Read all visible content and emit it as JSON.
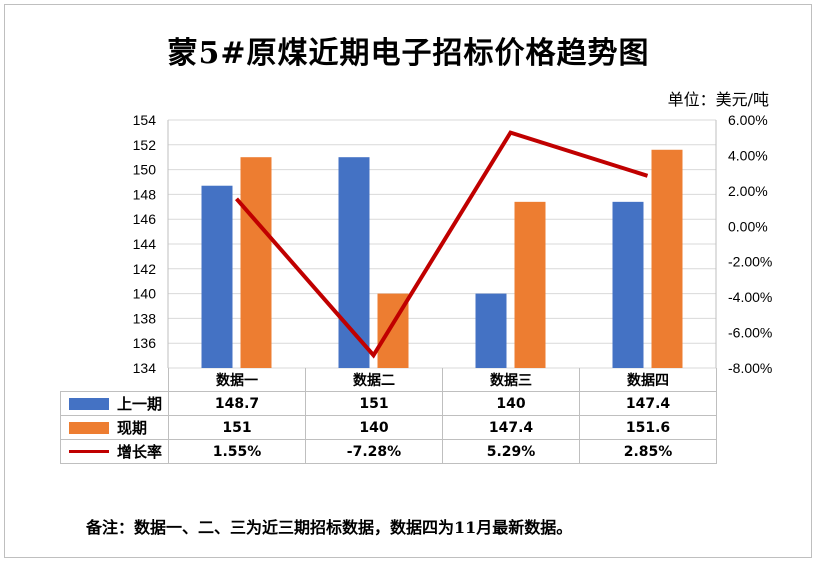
{
  "title": "蒙5#原煤近期电子招标价格趋势图",
  "unit_label": "单位：美元/吨",
  "note": "备注：数据一、二、三为近三期招标数据，数据四为11月最新数据。",
  "colors": {
    "prev": "#4472C4",
    "curr": "#ED7D31",
    "growth": "#C00000",
    "grid": "#d9d9d9",
    "frame": "#bfbfbf"
  },
  "chart_data": {
    "type": "bar",
    "categories": [
      "数据一",
      "数据二",
      "数据三",
      "数据四"
    ],
    "series": [
      {
        "name": "上一期",
        "type": "bar",
        "axis": "left",
        "values": [
          148.7,
          151,
          140,
          147.4
        ],
        "labels": [
          "148.7",
          "151",
          "140",
          "147.4"
        ]
      },
      {
        "name": "现期",
        "type": "bar",
        "axis": "left",
        "values": [
          151,
          140,
          147.4,
          151.6
        ],
        "labels": [
          "151",
          "140",
          "147.4",
          "151.6"
        ]
      },
      {
        "name": "增长率",
        "type": "line",
        "axis": "right",
        "values": [
          1.55,
          -7.28,
          5.29,
          2.85
        ],
        "labels": [
          "1.55%",
          "-7.28%",
          "5.29%",
          "2.85%"
        ]
      }
    ],
    "ylim": [
      134,
      154
    ],
    "y_ticks": [
      "154",
      "152",
      "150",
      "148",
      "146",
      "144",
      "142",
      "140",
      "138",
      "136",
      "134"
    ],
    "y2lim": [
      -8,
      6
    ],
    "y2_ticks": [
      "6.00%",
      "4.00%",
      "2.00%",
      "0.00%",
      "-2.00%",
      "-4.00%",
      "-6.00%",
      "-8.00%"
    ],
    "grid": true,
    "legend": "data-table"
  }
}
